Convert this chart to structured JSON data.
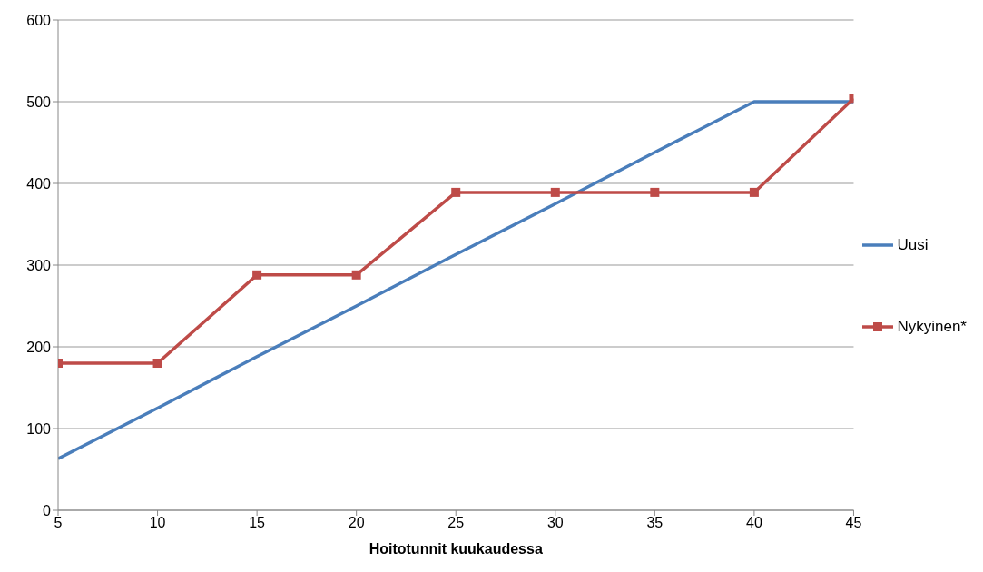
{
  "chart_data": {
    "type": "line",
    "xlabel": "Hoitotunnit kuukaudessa",
    "x": [
      5,
      10,
      15,
      20,
      25,
      30,
      35,
      40,
      45
    ],
    "series": [
      {
        "name": "Uusi",
        "color": "#4a7ebb",
        "values": [
          63,
          125,
          188,
          250,
          313,
          375,
          438,
          500,
          500
        ],
        "marker": "none"
      },
      {
        "name": "Nykyinen*",
        "color": "#be4b48",
        "values": [
          180,
          180,
          288,
          288,
          389,
          389,
          389,
          389,
          504
        ],
        "marker": "square"
      }
    ],
    "xlim": [
      5,
      45
    ],
    "xticks": [
      5,
      10,
      15,
      20,
      25,
      30,
      35,
      40,
      45
    ],
    "ylim": [
      0,
      600
    ],
    "yticks": [
      0,
      100,
      200,
      300,
      400,
      500,
      600
    ],
    "grid": "y",
    "legend": "right",
    "line_style": "solid"
  }
}
